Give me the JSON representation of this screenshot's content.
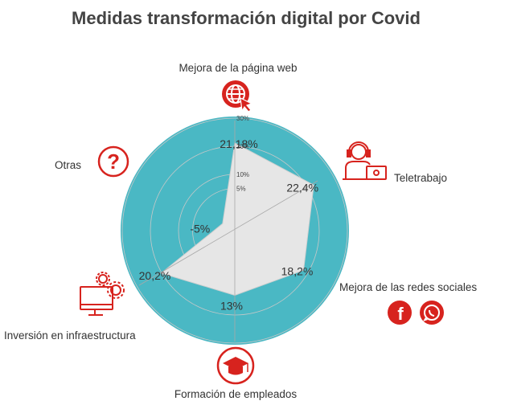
{
  "chart_data": {
    "type": "radar",
    "title": "Medidas transformación digital por Covid",
    "categories": [
      "Mejora de la página web",
      "Teletrabajo",
      "Mejora de las redes sociales",
      "Formación de empleados",
      "Inversión en infraestructura",
      "Otras"
    ],
    "values": [
      21.18,
      22.4,
      18.2,
      13,
      20.2,
      -5
    ],
    "value_labels": [
      "21,18%",
      "22,4%",
      "18,2%",
      "13%",
      "20,2%",
      "-5%"
    ],
    "rlim": [
      -10,
      30
    ],
    "ticks": [
      5,
      10,
      20,
      30
    ],
    "tick_labels": [
      "5%",
      "10%",
      "20%",
      "30%"
    ],
    "grid": true,
    "colors": {
      "background_disc": "#4ab8c4",
      "area_fill": "#e6e6e6",
      "icon": "#d7231e",
      "text": "#333333"
    },
    "icons": [
      "globe-cursor-icon",
      "headset-operator-icon",
      "facebook-icon",
      "whatsapp-icon",
      "graduation-cap-icon",
      "computer-gears-icon",
      "question-icon"
    ]
  }
}
